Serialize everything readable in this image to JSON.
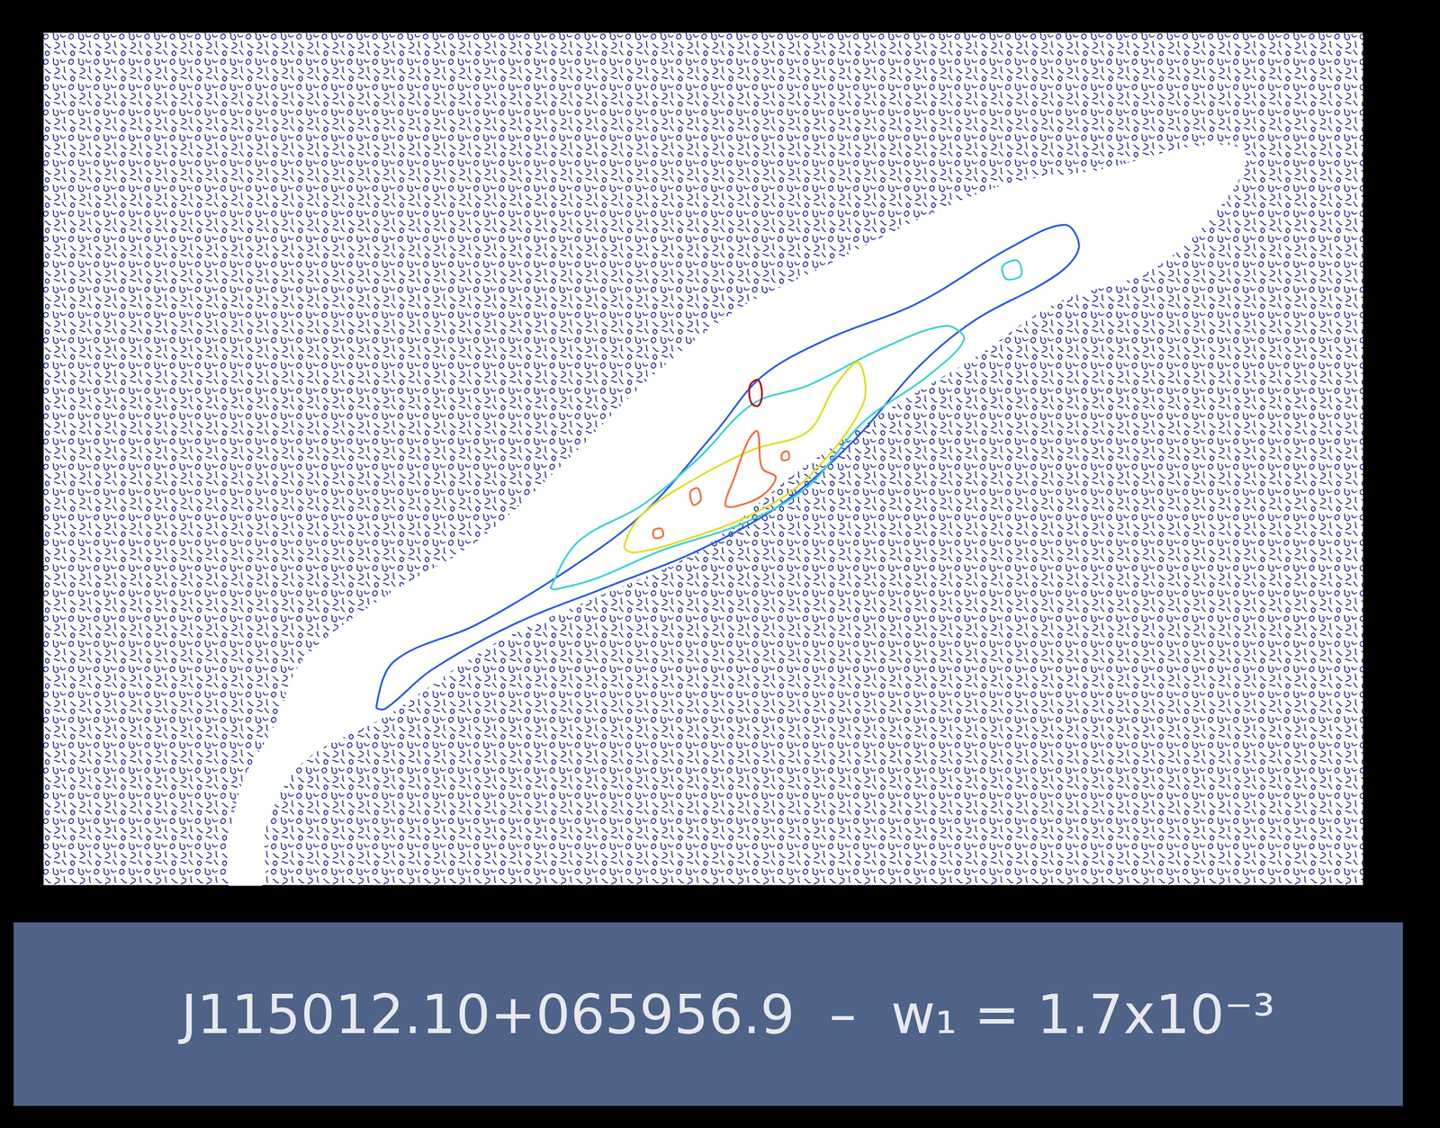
{
  "chart_data": {
    "type": "contour",
    "title": "J115012.10+065956.9  –  w₁ = 1.7x10⁻³",
    "xlim": [
      47,
      1485
    ],
    "ylim": [
      35,
      965
    ],
    "tick_labels": false,
    "grid": false,
    "clear_region": [
      [
        330,
        720
      ],
      [
        420,
        650
      ],
      [
        520,
        590
      ],
      [
        620,
        500
      ],
      [
        700,
        420
      ],
      [
        800,
        340
      ],
      [
        900,
        290
      ],
      [
        1000,
        240
      ],
      [
        1100,
        200
      ],
      [
        1200,
        185
      ],
      [
        1300,
        160
      ],
      [
        1355,
        165
      ],
      [
        1340,
        210
      ],
      [
        1260,
        290
      ],
      [
        1150,
        330
      ],
      [
        1060,
        390
      ],
      [
        960,
        450
      ],
      [
        860,
        520
      ],
      [
        760,
        600
      ],
      [
        650,
        650
      ],
      [
        540,
        700
      ],
      [
        420,
        780
      ],
      [
        330,
        830
      ],
      [
        290,
        900
      ],
      [
        285,
        965
      ],
      [
        250,
        965
      ],
      [
        262,
        860
      ],
      [
        300,
        790
      ]
    ],
    "contours": [
      {
        "color": "#2a5ae8",
        "points": [
          [
            410,
            770
          ],
          [
            430,
            720
          ],
          [
            520,
            680
          ],
          [
            620,
            620
          ],
          [
            700,
            560
          ],
          [
            780,
            470
          ],
          [
            830,
            410
          ],
          [
            900,
            370
          ],
          [
            1000,
            330
          ],
          [
            1100,
            270
          ],
          [
            1160,
            245
          ],
          [
            1175,
            270
          ],
          [
            1150,
            300
          ],
          [
            1060,
            350
          ],
          [
            1000,
            400
          ],
          [
            930,
            480
          ],
          [
            850,
            550
          ],
          [
            760,
            600
          ],
          [
            660,
            640
          ],
          [
            560,
            680
          ],
          [
            470,
            730
          ],
          [
            420,
            772
          ]
        ]
      },
      {
        "color": "#40d0d0",
        "points": [
          [
            600,
            640
          ],
          [
            630,
            590
          ],
          [
            700,
            550
          ],
          [
            760,
            500
          ],
          [
            820,
            440
          ],
          [
            880,
            420
          ],
          [
            960,
            380
          ],
          [
            1030,
            355
          ],
          [
            1050,
            370
          ],
          [
            1010,
            410
          ],
          [
            940,
            460
          ],
          [
            880,
            530
          ],
          [
            810,
            570
          ],
          [
            720,
            600
          ],
          [
            650,
            630
          ],
          [
            605,
            642
          ]
        ]
      },
      {
        "color": "#40d0d0",
        "points": [
          [
            1092,
            290
          ],
          [
            1108,
            284
          ],
          [
            1112,
            300
          ],
          [
            1096,
            304
          ]
        ]
      },
      {
        "color": "#dde020",
        "points": [
          [
            680,
            595
          ],
          [
            700,
            560
          ],
          [
            760,
            520
          ],
          [
            820,
            490
          ],
          [
            880,
            470
          ],
          [
            910,
            420
          ],
          [
            935,
            395
          ],
          [
            940,
            440
          ],
          [
            880,
            520
          ],
          [
            820,
            560
          ],
          [
            740,
            590
          ],
          [
            690,
            602
          ]
        ]
      },
      {
        "color": "#f07040",
        "points": [
          [
            790,
            550
          ],
          [
            800,
            520
          ],
          [
            815,
            480
          ],
          [
            825,
            470
          ],
          [
            830,
            510
          ],
          [
            845,
            520
          ],
          [
            830,
            540
          ],
          [
            800,
            552
          ]
        ]
      },
      {
        "color": "#f07040",
        "points": [
          [
            752,
            536
          ],
          [
            760,
            532
          ],
          [
            763,
            545
          ],
          [
            755,
            550
          ]
        ]
      },
      {
        "color": "#f07040",
        "points": [
          [
            712,
            578
          ],
          [
            720,
            576
          ],
          [
            722,
            584
          ],
          [
            713,
            586
          ]
        ]
      },
      {
        "color": "#f07040",
        "points": [
          [
            852,
            494
          ],
          [
            858,
            492
          ],
          [
            859,
            500
          ],
          [
            852,
            501
          ]
        ]
      },
      {
        "color": "#b01010",
        "points": [
          [
            818,
            418
          ],
          [
            826,
            414
          ],
          [
            830,
            430
          ],
          [
            826,
            442
          ],
          [
            819,
            440
          ],
          [
            816,
            428
          ]
        ]
      }
    ]
  }
}
